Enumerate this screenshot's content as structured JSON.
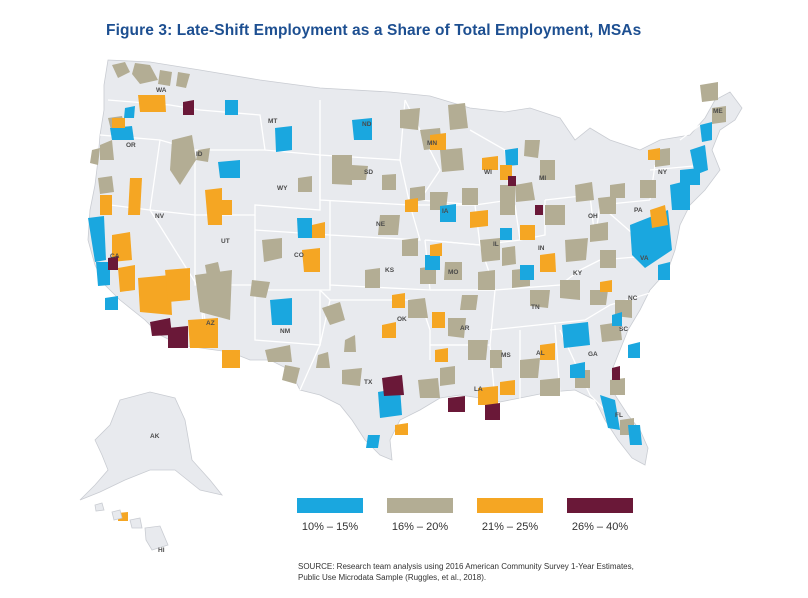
{
  "title": "Figure 3: Late-Shift Employment as a Share of Total Employment, MSAs",
  "colors": {
    "cat1": "#1aa7df",
    "cat2": "#b3ad94",
    "cat3": "#f5a623",
    "cat4": "#6a1838",
    "land": "#e8eaee",
    "border": "#ffffff"
  },
  "legend": [
    {
      "label": "10% – 15%",
      "color": "#1aa7df"
    },
    {
      "label": "16% – 20%",
      "color": "#b3ad94"
    },
    {
      "label": "21% – 25%",
      "color": "#f5a623"
    },
    {
      "label": "26% – 40%",
      "color": "#6a1838"
    }
  ],
  "state_labels": {
    "WA": "WA",
    "OR": "OR",
    "CA": "CA",
    "NV": "NV",
    "ID": "ID",
    "MT": "MT",
    "WY": "WY",
    "UT": "UT",
    "AZ": "AZ",
    "CO": "CO",
    "NM": "NM",
    "ND": "ND",
    "SD": "SD",
    "NE": "NE",
    "KS": "KS",
    "OK": "OK",
    "TX": "TX",
    "MN": "MN",
    "IA": "IA",
    "MO": "MO",
    "AR": "AR",
    "LA": "LA",
    "WI": "WI",
    "IL": "IL",
    "MI": "MI",
    "IN": "IN",
    "OH": "OH",
    "KY": "KY",
    "TN": "TN",
    "MS": "MS",
    "AL": "AL",
    "GA": "GA",
    "FL": "FL",
    "SC": "SC",
    "NC": "NC",
    "VA": "VA",
    "PA": "PA",
    "NY": "NY",
    "ME": "ME",
    "AK": "AK",
    "HI": "HI"
  },
  "source_line1": "SOURCE: Research team analysis using 2016 American Community Survey 1-Year Estimates,",
  "source_line2": "Public Use Microdata Sample (Ruggles, et al., 2018)."
}
